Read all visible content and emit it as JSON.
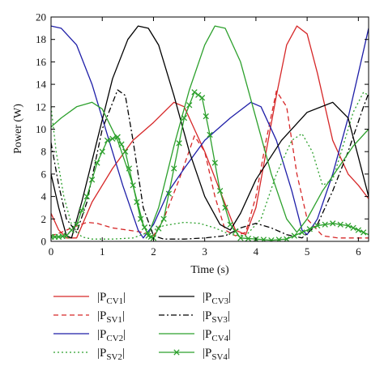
{
  "chart_data": {
    "type": "line",
    "xlabel": "Time (s)",
    "ylabel": "Power (W)",
    "xlim": [
      0,
      6.2
    ],
    "ylim": [
      0,
      20
    ],
    "xticks": [
      0,
      1,
      2,
      3,
      4,
      5,
      6
    ],
    "yticks": [
      0,
      2,
      4,
      6,
      8,
      10,
      12,
      14,
      16,
      18,
      20
    ],
    "grid": false,
    "legend_placement": "bottom",
    "series": [
      {
        "legend_main": "|P",
        "legend_sub": "CV1",
        "legend_tail": "|",
        "color": "#d62728",
        "dash": "solid",
        "marker": "none",
        "points": [
          [
            0,
            2.5
          ],
          [
            0.15,
            1.0
          ],
          [
            0.3,
            0.3
          ],
          [
            0.5,
            0.3
          ],
          [
            0.8,
            3.5
          ],
          [
            1.2,
            6.5
          ],
          [
            1.6,
            9.0
          ],
          [
            2.0,
            10.6
          ],
          [
            2.4,
            12.4
          ],
          [
            2.6,
            12.0
          ],
          [
            2.8,
            10.0
          ],
          [
            3.0,
            8.0
          ],
          [
            3.3,
            4.5
          ],
          [
            3.6,
            1.0
          ],
          [
            3.8,
            0.6
          ],
          [
            4.0,
            3.0
          ],
          [
            4.2,
            8.0
          ],
          [
            4.4,
            13.0
          ],
          [
            4.6,
            17.5
          ],
          [
            4.8,
            19.2
          ],
          [
            5.0,
            18.5
          ],
          [
            5.2,
            15.0
          ],
          [
            5.5,
            9.0
          ],
          [
            5.8,
            6.0
          ],
          [
            6.0,
            5.0
          ],
          [
            6.2,
            3.8
          ]
        ]
      },
      {
        "legend_main": "|P",
        "legend_sub": "SV1",
        "legend_tail": "|",
        "color": "#d62728",
        "dash": "6,4",
        "marker": "none",
        "points": [
          [
            0,
            0.5
          ],
          [
            0.2,
            0.8
          ],
          [
            0.4,
            1.2
          ],
          [
            0.7,
            1.7
          ],
          [
            0.9,
            1.6
          ],
          [
            1.2,
            1.2
          ],
          [
            1.5,
            1.0
          ],
          [
            1.8,
            0.8
          ],
          [
            2.0,
            0.5
          ],
          [
            2.2,
            2.0
          ],
          [
            2.5,
            5.5
          ],
          [
            2.8,
            9.4
          ],
          [
            3.0,
            8.0
          ],
          [
            3.2,
            4.0
          ],
          [
            3.4,
            1.0
          ],
          [
            3.6,
            0.5
          ],
          [
            3.8,
            0.8
          ],
          [
            4.0,
            4.0
          ],
          [
            4.2,
            9.0
          ],
          [
            4.4,
            13.4
          ],
          [
            4.6,
            12.0
          ],
          [
            4.8,
            6.0
          ],
          [
            5.0,
            2.0
          ],
          [
            5.3,
            0.5
          ],
          [
            5.6,
            0.3
          ],
          [
            6.0,
            0.3
          ],
          [
            6.2,
            0.3
          ]
        ]
      },
      {
        "legend_main": "|P",
        "legend_sub": "CV2",
        "legend_tail": "|",
        "color": "#1f1fa8",
        "dash": "solid",
        "marker": "none",
        "points": [
          [
            0,
            19.2
          ],
          [
            0.2,
            19.0
          ],
          [
            0.5,
            17.5
          ],
          [
            0.8,
            14.0
          ],
          [
            1.1,
            9.5
          ],
          [
            1.4,
            5.0
          ],
          [
            1.7,
            1.0
          ],
          [
            1.8,
            0.3
          ],
          [
            2.0,
            1.5
          ],
          [
            2.3,
            4.5
          ],
          [
            2.6,
            6.5
          ],
          [
            3.0,
            9.0
          ],
          [
            3.5,
            11.0
          ],
          [
            3.9,
            12.4
          ],
          [
            4.1,
            12.0
          ],
          [
            4.4,
            9.0
          ],
          [
            4.7,
            4.5
          ],
          [
            4.9,
            1.0
          ],
          [
            5.0,
            0.6
          ],
          [
            5.2,
            2.0
          ],
          [
            5.5,
            6.0
          ],
          [
            5.8,
            11.0
          ],
          [
            6.0,
            15.0
          ],
          [
            6.2,
            19.0
          ]
        ]
      },
      {
        "legend_main": "|P",
        "legend_sub": "SV2",
        "legend_tail": "|",
        "color": "#2ca02c",
        "dash": "2,3",
        "marker": "none",
        "points": [
          [
            0,
            12.0
          ],
          [
            0.1,
            8.0
          ],
          [
            0.25,
            4.0
          ],
          [
            0.4,
            1.5
          ],
          [
            0.6,
            0.4
          ],
          [
            0.8,
            0.2
          ],
          [
            1.2,
            0.2
          ],
          [
            1.6,
            0.3
          ],
          [
            1.9,
            0.8
          ],
          [
            2.2,
            1.4
          ],
          [
            2.6,
            1.7
          ],
          [
            2.9,
            1.6
          ],
          [
            3.2,
            1.2
          ],
          [
            3.5,
            0.6
          ],
          [
            3.8,
            0.5
          ],
          [
            4.1,
            2.0
          ],
          [
            4.4,
            6.0
          ],
          [
            4.7,
            9.0
          ],
          [
            4.9,
            9.6
          ],
          [
            5.1,
            8.0
          ],
          [
            5.3,
            5.0
          ],
          [
            5.5,
            5.5
          ],
          [
            5.7,
            8.5
          ],
          [
            5.9,
            11.5
          ],
          [
            6.1,
            13.3
          ],
          [
            6.2,
            13.0
          ]
        ]
      },
      {
        "legend_main": "|P",
        "legend_sub": "CV3",
        "legend_tail": "|",
        "color": "#000000",
        "dash": "solid",
        "marker": "none",
        "points": [
          [
            0,
            6.0
          ],
          [
            0.15,
            3.0
          ],
          [
            0.3,
            0.5
          ],
          [
            0.4,
            0.3
          ],
          [
            0.6,
            3.5
          ],
          [
            0.9,
            9.0
          ],
          [
            1.2,
            14.5
          ],
          [
            1.5,
            18.0
          ],
          [
            1.7,
            19.2
          ],
          [
            1.9,
            19.0
          ],
          [
            2.1,
            17.5
          ],
          [
            2.4,
            13.0
          ],
          [
            2.7,
            8.0
          ],
          [
            3.0,
            4.0
          ],
          [
            3.3,
            1.5
          ],
          [
            3.5,
            1.0
          ],
          [
            3.7,
            2.5
          ],
          [
            4.0,
            5.5
          ],
          [
            4.5,
            9.0
          ],
          [
            5.0,
            11.5
          ],
          [
            5.5,
            12.4
          ],
          [
            5.8,
            11.0
          ],
          [
            6.0,
            7.5
          ],
          [
            6.2,
            4.0
          ]
        ]
      },
      {
        "legend_main": "|P",
        "legend_sub": "SV3",
        "legend_tail": "|",
        "color": "#000000",
        "dash": "7,3,2,3",
        "marker": "none",
        "points": [
          [
            0,
            8.8
          ],
          [
            0.15,
            5.0
          ],
          [
            0.3,
            2.0
          ],
          [
            0.5,
            0.8
          ],
          [
            0.7,
            3.5
          ],
          [
            1.0,
            10.0
          ],
          [
            1.3,
            13.5
          ],
          [
            1.45,
            13.0
          ],
          [
            1.6,
            9.0
          ],
          [
            1.8,
            3.0
          ],
          [
            2.0,
            0.5
          ],
          [
            2.2,
            0.2
          ],
          [
            2.6,
            0.2
          ],
          [
            3.0,
            0.3
          ],
          [
            3.4,
            0.5
          ],
          [
            3.7,
            1.2
          ],
          [
            4.0,
            1.6
          ],
          [
            4.3,
            1.2
          ],
          [
            4.6,
            0.6
          ],
          [
            4.9,
            0.3
          ],
          [
            5.2,
            1.5
          ],
          [
            5.5,
            4.5
          ],
          [
            5.8,
            8.0
          ],
          [
            6.1,
            12.0
          ],
          [
            6.2,
            13.2
          ]
        ]
      },
      {
        "legend_main": "|P",
        "legend_sub": "CV4",
        "legend_tail": "|",
        "color": "#2ca02c",
        "dash": "solid",
        "marker": "none",
        "points": [
          [
            0,
            10.2
          ],
          [
            0.2,
            11.0
          ],
          [
            0.5,
            12.0
          ],
          [
            0.8,
            12.4
          ],
          [
            1.0,
            11.8
          ],
          [
            1.3,
            9.0
          ],
          [
            1.6,
            5.0
          ],
          [
            1.8,
            1.5
          ],
          [
            1.9,
            0.6
          ],
          [
            2.1,
            3.0
          ],
          [
            2.4,
            8.5
          ],
          [
            2.7,
            13.5
          ],
          [
            3.0,
            17.5
          ],
          [
            3.2,
            19.2
          ],
          [
            3.4,
            19.0
          ],
          [
            3.7,
            16.0
          ],
          [
            4.0,
            11.0
          ],
          [
            4.3,
            6.0
          ],
          [
            4.6,
            2.0
          ],
          [
            4.8,
            0.8
          ],
          [
            5.0,
            2.0
          ],
          [
            5.3,
            4.5
          ],
          [
            5.6,
            6.5
          ],
          [
            5.9,
            8.5
          ],
          [
            6.2,
            10.0
          ]
        ]
      },
      {
        "legend_main": "|P",
        "legend_sub": "SV4",
        "legend_tail": "|",
        "color": "#2ca02c",
        "dash": "solid",
        "marker": "x",
        "points": [
          [
            0,
            0.4
          ],
          [
            0.15,
            0.4
          ],
          [
            0.3,
            0.5
          ],
          [
            0.5,
            1.5
          ],
          [
            0.7,
            4.0
          ],
          [
            0.9,
            7.0
          ],
          [
            1.1,
            9.0
          ],
          [
            1.3,
            9.3
          ],
          [
            1.45,
            8.0
          ],
          [
            1.6,
            5.0
          ],
          [
            1.75,
            2.0
          ],
          [
            1.9,
            0.5
          ],
          [
            2.0,
            0.3
          ],
          [
            2.2,
            2.0
          ],
          [
            2.4,
            6.5
          ],
          [
            2.6,
            11.0
          ],
          [
            2.8,
            13.3
          ],
          [
            2.95,
            12.8
          ],
          [
            3.1,
            9.5
          ],
          [
            3.3,
            4.5
          ],
          [
            3.5,
            1.5
          ],
          [
            3.7,
            0.3
          ],
          [
            4.0,
            0.2
          ],
          [
            4.3,
            0.1
          ],
          [
            4.6,
            0.2
          ],
          [
            4.9,
            0.8
          ],
          [
            5.2,
            1.4
          ],
          [
            5.5,
            1.6
          ],
          [
            5.8,
            1.4
          ],
          [
            6.0,
            1.0
          ],
          [
            6.2,
            0.6
          ]
        ]
      }
    ]
  }
}
